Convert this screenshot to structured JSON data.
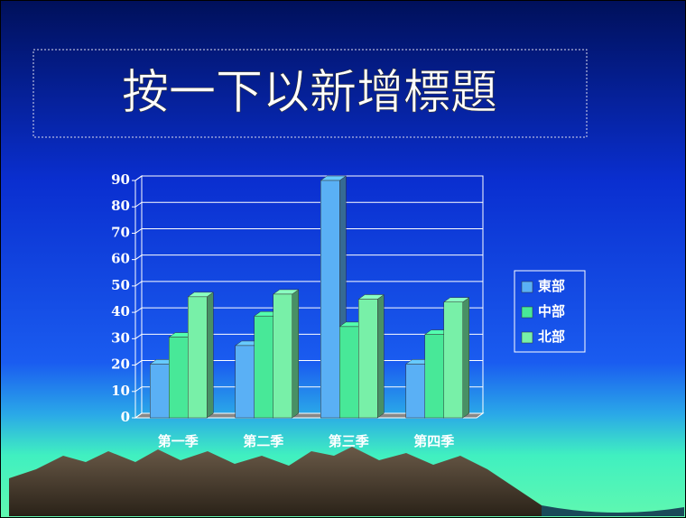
{
  "slide": {
    "title_placeholder": "按一下以新增標題"
  },
  "chart_data": {
    "type": "bar3d",
    "categories": [
      "第一季",
      "第二季",
      "第三季",
      "第四季"
    ],
    "series": [
      {
        "name": "東部",
        "color": "#5ab0f5",
        "values": [
          20.4,
          27.4,
          90,
          20.4
        ]
      },
      {
        "name": "中部",
        "color": "#48e898",
        "values": [
          30.6,
          38.6,
          34.6,
          31.6
        ]
      },
      {
        "name": "北部",
        "color": "#78f0a8",
        "values": [
          45.9,
          46.9,
          45,
          43.9
        ]
      }
    ],
    "ylim": [
      0,
      90
    ],
    "yticks": [
      0,
      10,
      20,
      30,
      40,
      50,
      60,
      70,
      80,
      90
    ],
    "grid": true,
    "legend": "right"
  }
}
